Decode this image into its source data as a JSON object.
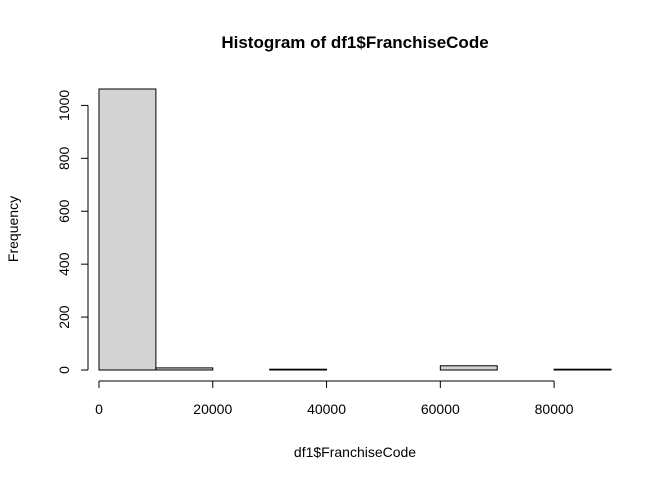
{
  "chart_data": {
    "type": "bar",
    "title": "Histogram of df1$FranchiseCode",
    "xlabel": "df1$FranchiseCode",
    "ylabel": "Frequency",
    "bin_edges": [
      0,
      10000,
      20000,
      30000,
      40000,
      50000,
      60000,
      70000,
      80000,
      90000
    ],
    "values": [
      1062,
      8,
      0,
      3,
      0,
      0,
      16,
      0,
      3
    ],
    "xlim": [
      0,
      90000
    ],
    "ylim": [
      0,
      1062
    ],
    "x_ticks": [
      0,
      20000,
      40000,
      60000,
      80000
    ],
    "y_ticks": [
      0,
      200,
      400,
      600,
      800,
      1000
    ],
    "grid": false
  }
}
